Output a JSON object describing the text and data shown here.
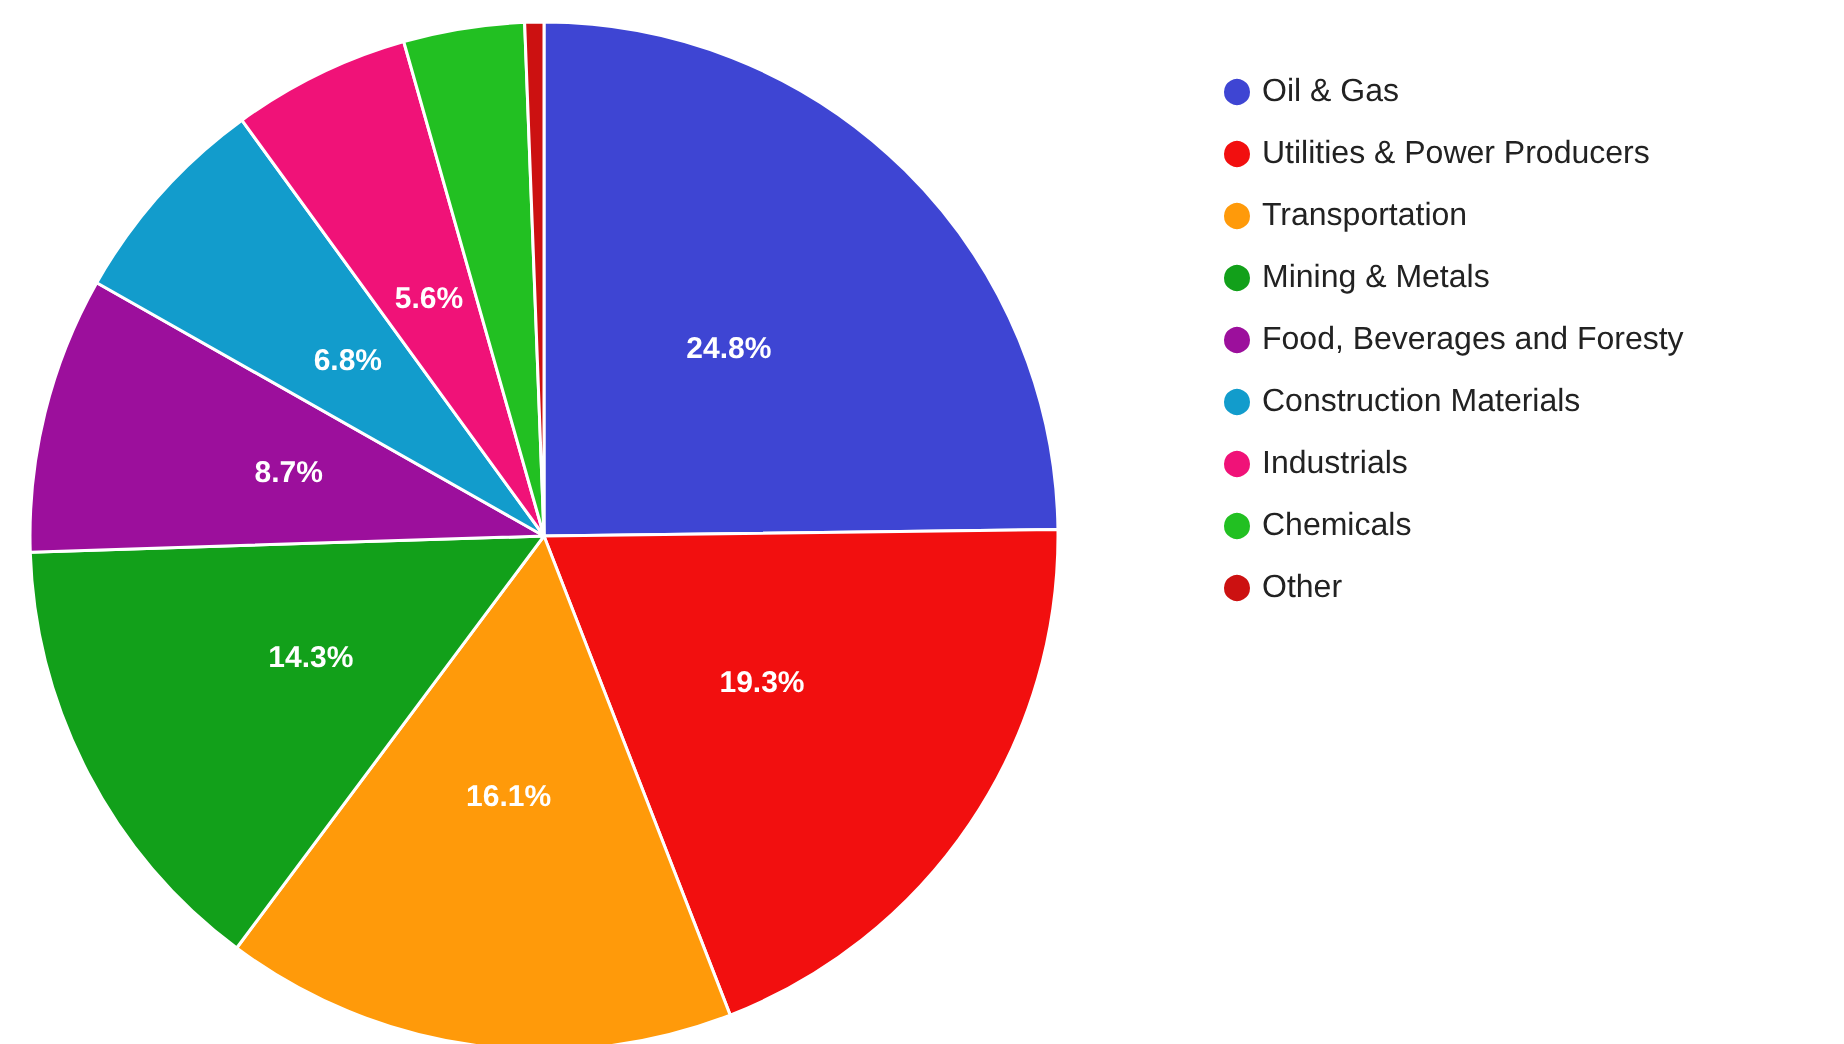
{
  "chart_data": {
    "type": "pie",
    "categories": [
      "Oil & Gas",
      "Utilities & Power Producers",
      "Transportation",
      "Mining & Metals",
      "Food, Beverages and Foresty",
      "Construction Materials",
      "Industrials",
      "Chemicals",
      "Other"
    ],
    "values": [
      24.8,
      19.3,
      16.1,
      14.3,
      8.7,
      6.8,
      5.6,
      3.8,
      0.6
    ],
    "value_labels": [
      "24.8%",
      "19.3%",
      "16.1%",
      "14.3%",
      "8.7%",
      "6.8%",
      "5.6%",
      null,
      null
    ],
    "colors": [
      "#3e45d3",
      "#f20f0f",
      "#ff9a0a",
      "#12a01a",
      "#9c0f9c",
      "#129ccc",
      "#f01278",
      "#22c022",
      "#cc1111"
    ],
    "legend": "right"
  }
}
